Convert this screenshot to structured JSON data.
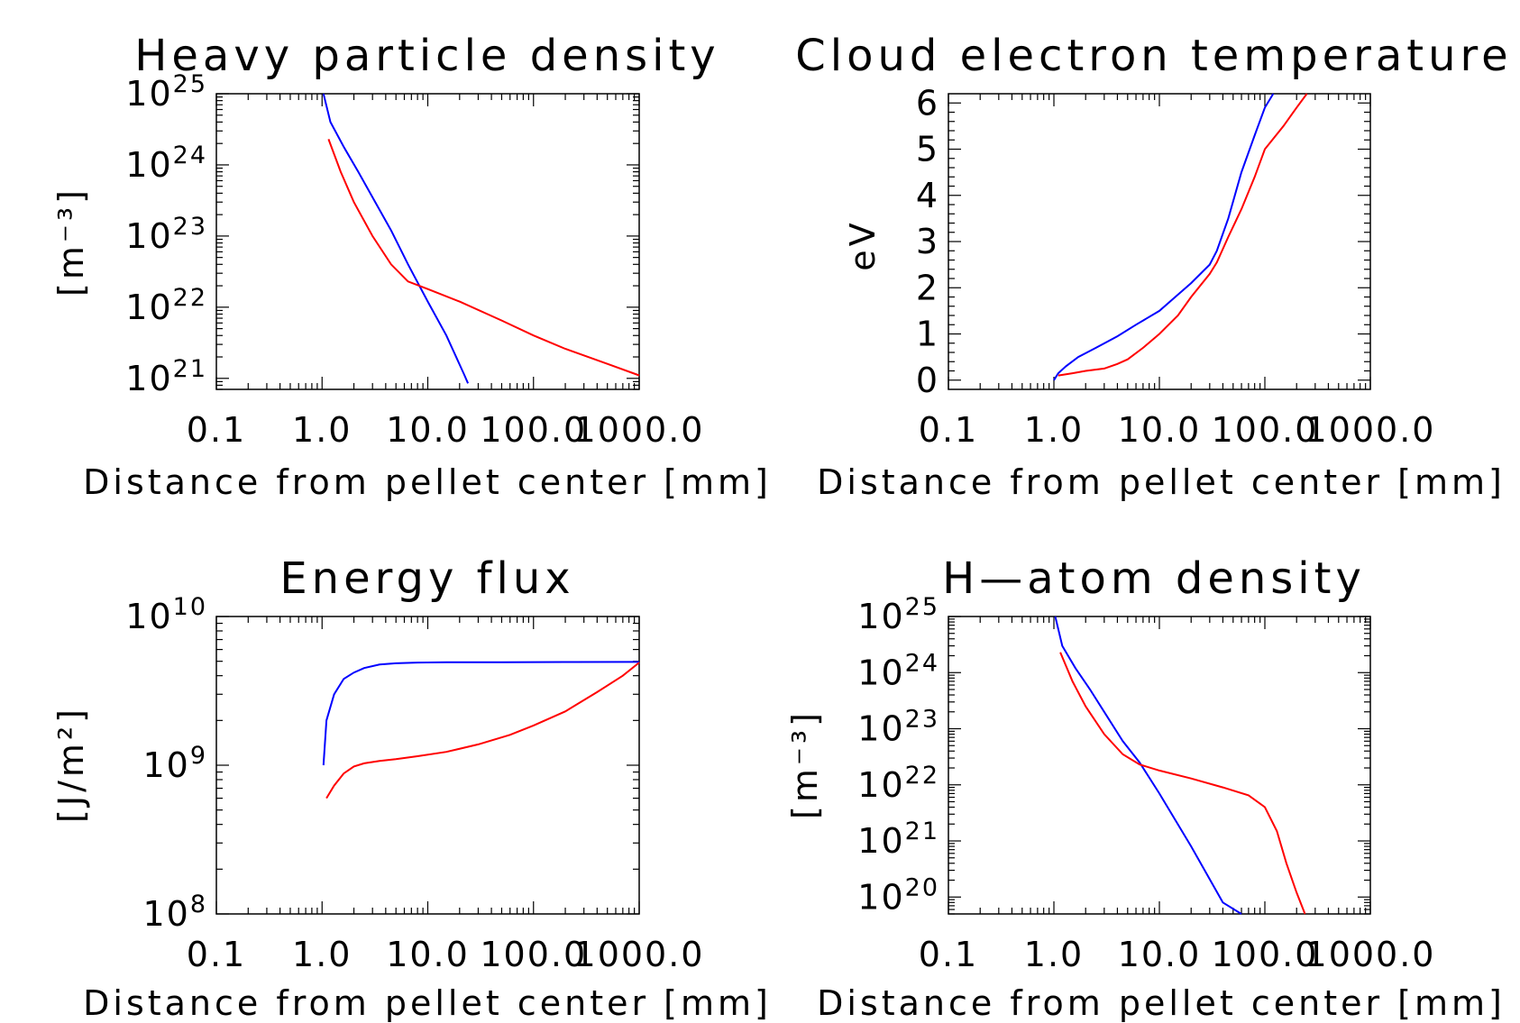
{
  "chart_data": [
    {
      "type": "line",
      "title": "Heavy particle density",
      "xlabel": "Distance from pellet center [mm]",
      "ylabel": "[m⁻³]",
      "xscale": "log",
      "yscale": "log",
      "xlim": [
        0.1,
        1000
      ],
      "ylim": [
        7e+20,
        1e+25
      ],
      "xticks": [
        0.1,
        1,
        10,
        100,
        1000
      ],
      "xtick_labels": [
        "0.1",
        "1.0",
        "10.0",
        "100.0",
        "1000.0"
      ],
      "yticks": [
        1e+21,
        1e+22,
        1e+23,
        1e+24,
        1e+25
      ],
      "ytick_labels": [
        {
          "base": "10",
          "exp": "21"
        },
        {
          "base": "10",
          "exp": "22"
        },
        {
          "base": "10",
          "exp": "23"
        },
        {
          "base": "10",
          "exp": "24"
        },
        {
          "base": "10",
          "exp": "25"
        }
      ],
      "series": [
        {
          "color": "#0000ff",
          "x": [
            1.03,
            1.2,
            1.6,
            2.2,
            3,
            4.5,
            6.5,
            10,
            15,
            22,
            24
          ],
          "y": [
            1e+25,
            4e+24,
            1.8e+24,
            8e+23,
            3.5e+23,
            1.2e+23,
            4e+22,
            1.2e+22,
            4e+21,
            1.15e+21,
            8.5e+20
          ]
        },
        {
          "color": "#ff0000",
          "x": [
            1.15,
            1.5,
            2,
            3,
            4.5,
            6.5,
            10,
            20,
            50,
            100,
            200,
            500,
            1000
          ],
          "y": [
            2.3e+24,
            8e+23,
            3e+23,
            1e+23,
            4e+22,
            2.3e+22,
            1.8e+22,
            1.2e+22,
            6.5e+21,
            4e+21,
            2.6e+21,
            1.6e+21,
            1.1e+21
          ]
        }
      ]
    },
    {
      "type": "line",
      "title": "Cloud electron temperature",
      "xlabel": "Distance from pellet center [mm]",
      "ylabel": "eV",
      "xscale": "log",
      "yscale": "linear",
      "xlim": [
        0.1,
        1000
      ],
      "ylim": [
        -0.2,
        6.2
      ],
      "xticks": [
        0.1,
        1,
        10,
        100,
        1000
      ],
      "xtick_labels": [
        "0.1",
        "1.0",
        "10.0",
        "100.0",
        "1000.0"
      ],
      "yticks": [
        0,
        1,
        2,
        3,
        4,
        5,
        6
      ],
      "ytick_labels": [
        "0",
        "1",
        "2",
        "3",
        "4",
        "5",
        "6"
      ],
      "series": [
        {
          "color": "#0000ff",
          "x": [
            1,
            1.1,
            1.3,
            1.7,
            2.5,
            4,
            6,
            10,
            15,
            20,
            30,
            35,
            45,
            60,
            80,
            100,
            120
          ],
          "y": [
            0,
            0.15,
            0.3,
            0.5,
            0.7,
            0.95,
            1.2,
            1.5,
            1.85,
            2.1,
            2.5,
            2.8,
            3.5,
            4.5,
            5.3,
            5.9,
            6.2
          ]
        },
        {
          "color": "#ff0000",
          "x": [
            1.1,
            1.5,
            2,
            3,
            4,
            5,
            7,
            10,
            15,
            20,
            30,
            35,
            45,
            60,
            80,
            100,
            150,
            200,
            250
          ],
          "y": [
            0.1,
            0.15,
            0.2,
            0.25,
            0.35,
            0.45,
            0.7,
            1.0,
            1.4,
            1.8,
            2.3,
            2.55,
            3.1,
            3.7,
            4.4,
            5.0,
            5.5,
            5.9,
            6.2
          ]
        }
      ]
    },
    {
      "type": "line",
      "title": "Energy flux",
      "xlabel": "Distance from pellet center [mm]",
      "ylabel": "[J/m²]",
      "xscale": "log",
      "yscale": "log",
      "xlim": [
        0.1,
        1000
      ],
      "ylim": [
        100000000.0,
        10000000000.0
      ],
      "xticks": [
        0.1,
        1,
        10,
        100,
        1000
      ],
      "xtick_labels": [
        "0.1",
        "1.0",
        "10.0",
        "100.0",
        "1000.0"
      ],
      "yticks": [
        100000000.0,
        1000000000.0,
        10000000000.0
      ],
      "ytick_labels": [
        {
          "base": "10",
          "exp": "8"
        },
        {
          "base": "10",
          "exp": "9"
        },
        {
          "base": "10",
          "exp": "10"
        }
      ],
      "series": [
        {
          "color": "#0000ff",
          "x": [
            1.03,
            1.1,
            1.3,
            1.6,
            2,
            2.5,
            3.5,
            5,
            8,
            15,
            50,
            200,
            1000
          ],
          "y": [
            1000000000.0,
            2000000000.0,
            3000000000.0,
            3800000000.0,
            4200000000.0,
            4500000000.0,
            4750000000.0,
            4850000000.0,
            4900000000.0,
            4920000000.0,
            4930000000.0,
            4940000000.0,
            4950000000.0
          ]
        },
        {
          "color": "#ff0000",
          "x": [
            1.1,
            1.3,
            1.6,
            2,
            2.5,
            3.5,
            5,
            8,
            15,
            30,
            60,
            100,
            200,
            400,
            700,
            1000
          ],
          "y": [
            600000000.0,
            730000000.0,
            880000000.0,
            980000000.0,
            1030000000.0,
            1070000000.0,
            1100000000.0,
            1150000000.0,
            1230000000.0,
            1380000000.0,
            1600000000.0,
            1850000000.0,
            2300000000.0,
            3100000000.0,
            4000000000.0,
            4900000000.0
          ]
        }
      ]
    },
    {
      "type": "line",
      "title": "H—atom density",
      "xlabel": "Distance from pellet center [mm]",
      "ylabel": "[m⁻³]",
      "xscale": "log",
      "yscale": "log",
      "xlim": [
        0.1,
        1000
      ],
      "ylim": [
        5e+19,
        1e+25
      ],
      "xticks": [
        0.1,
        1,
        10,
        100,
        1000
      ],
      "xtick_labels": [
        "0.1",
        "1.0",
        "10.0",
        "100.0",
        "1000.0"
      ],
      "yticks": [
        1e+20,
        1e+21,
        1e+22,
        1e+23,
        1e+24,
        1e+25
      ],
      "ytick_labels": [
        {
          "base": "10",
          "exp": "20"
        },
        {
          "base": "10",
          "exp": "21"
        },
        {
          "base": "10",
          "exp": "22"
        },
        {
          "base": "10",
          "exp": "23"
        },
        {
          "base": "10",
          "exp": "24"
        },
        {
          "base": "10",
          "exp": "25"
        }
      ],
      "series": [
        {
          "color": "#0000ff",
          "x": [
            1.03,
            1.2,
            1.6,
            2.2,
            3,
            4.5,
            6.5,
            10,
            20,
            40,
            60
          ],
          "y": [
            1e+25,
            3e+24,
            1.2e+24,
            5e+23,
            2e+23,
            6e+22,
            2.5e+22,
            7e+21,
            8e+20,
            8e+19,
            5e+19
          ]
        },
        {
          "color": "#ff0000",
          "x": [
            1.15,
            1.5,
            2,
            3,
            4.5,
            6.5,
            10,
            20,
            40,
            70,
            100,
            130,
            160,
            200,
            240
          ],
          "y": [
            2.3e+24,
            7e+23,
            2.5e+23,
            8e+22,
            3.5e+22,
            2.3e+22,
            1.8e+22,
            1.3e+22,
            9e+21,
            6.5e+21,
            4e+21,
            1.5e+21,
            4e+20,
            1.2e+20,
            5e+19
          ]
        }
      ]
    }
  ]
}
